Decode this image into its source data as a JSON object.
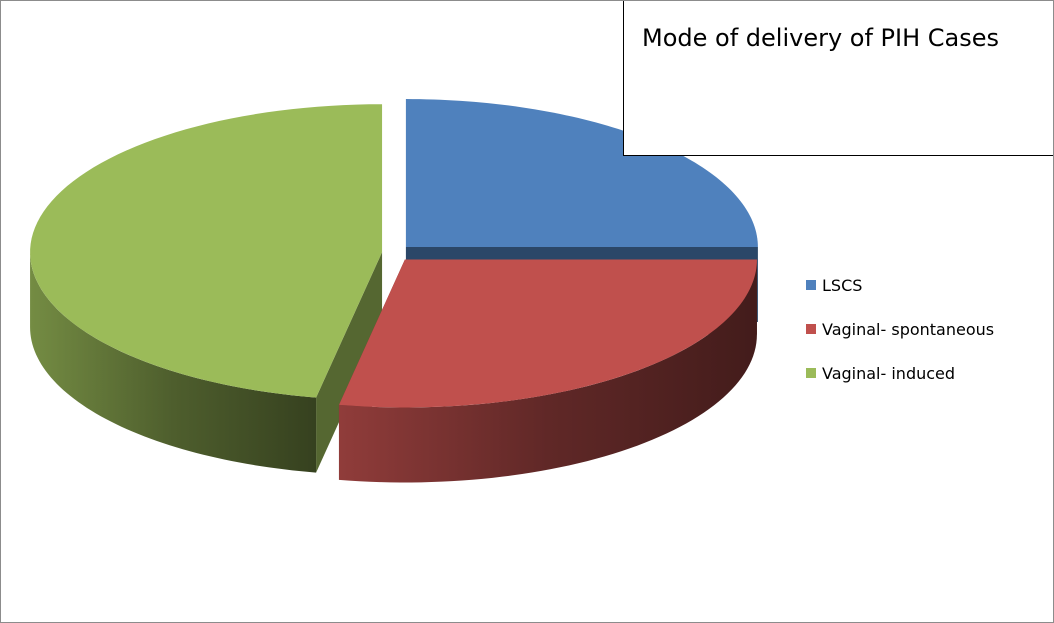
{
  "chart_data": {
    "type": "pie",
    "title": "Mode of delivery of PIH Cases",
    "categories": [
      "LSCS",
      "Vaginal- spontaneous",
      "Vaginal- induced"
    ],
    "values": [
      25,
      28,
      47
    ],
    "colors": [
      "#4f81bd",
      "#c0504d",
      "#9bbb59"
    ],
    "legend": "right"
  }
}
